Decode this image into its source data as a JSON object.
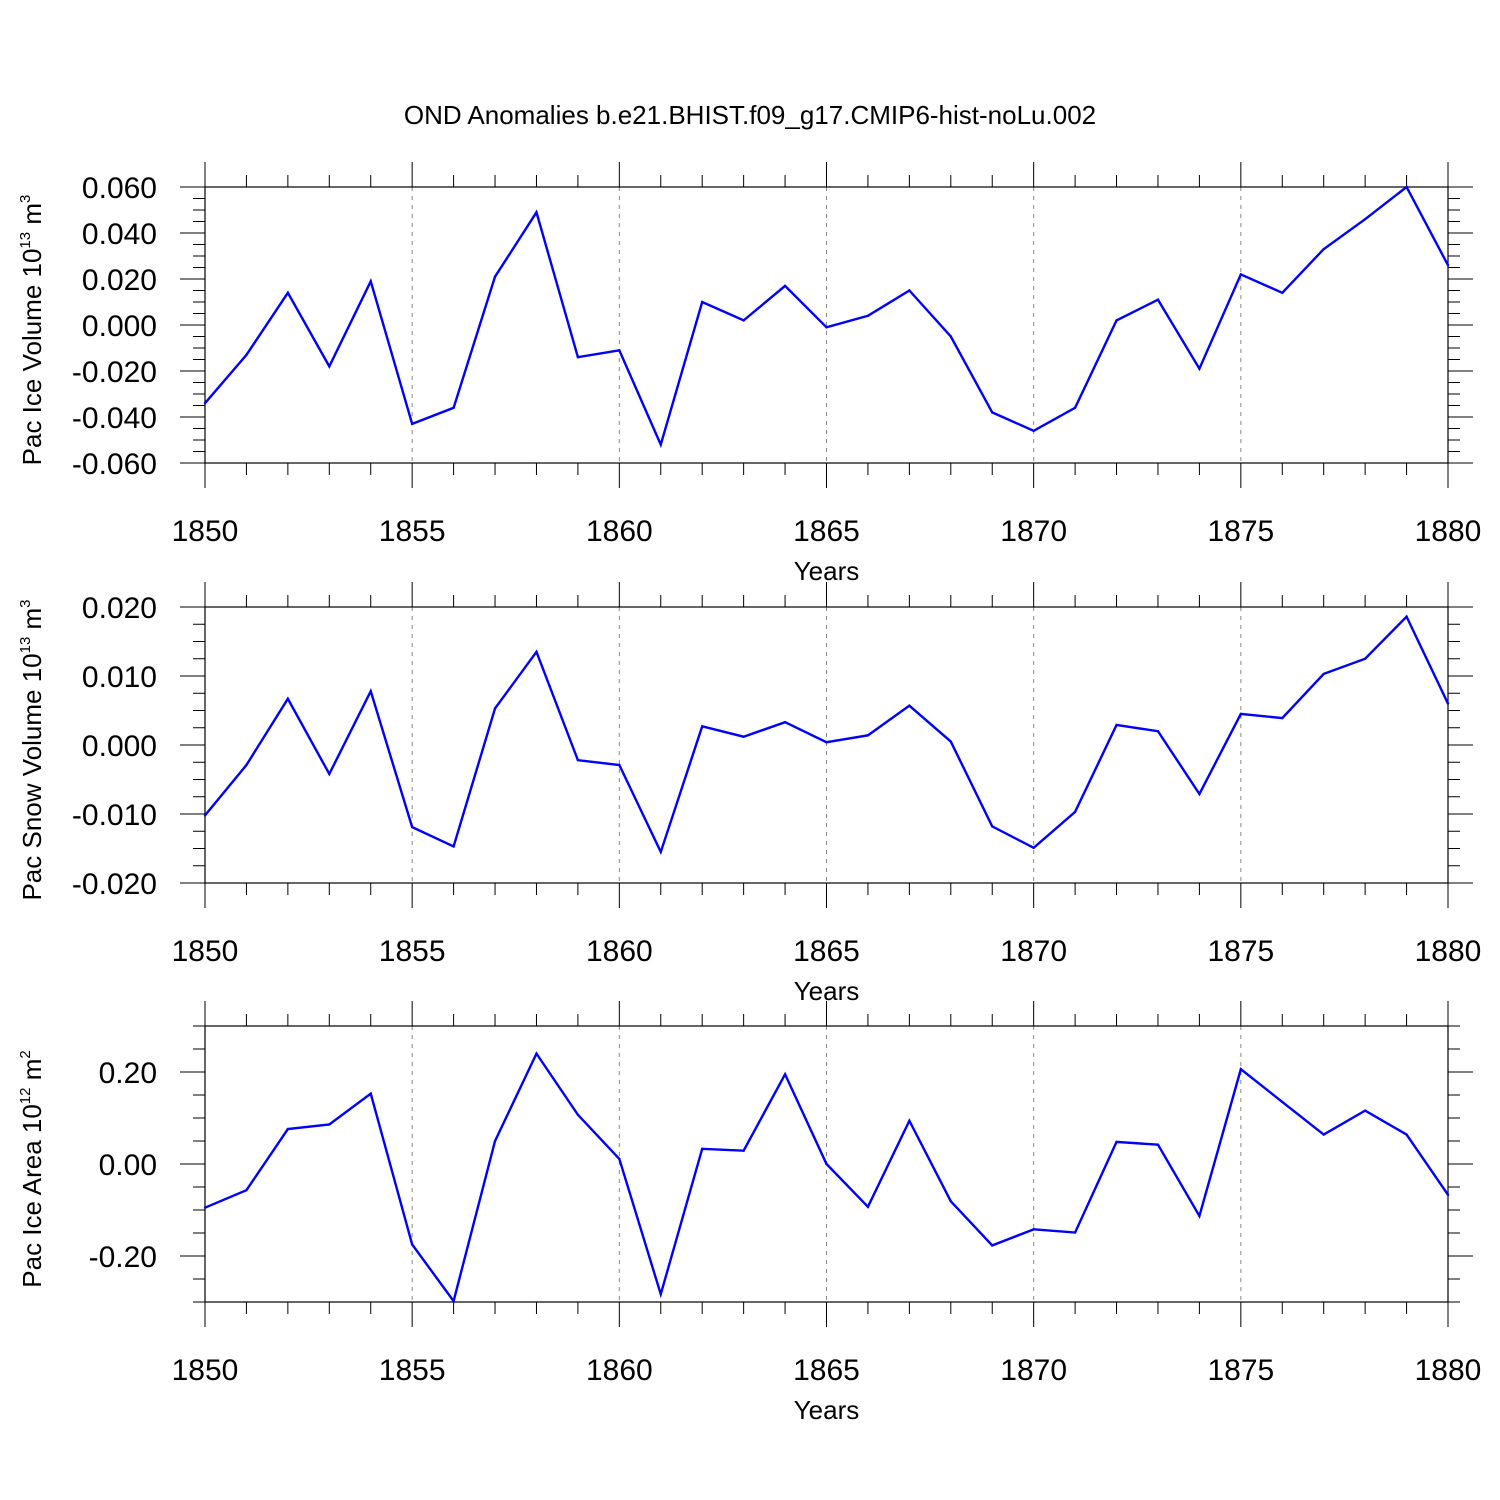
{
  "title": "OND Anomalies b.e21.BHIST.f09_g17.CMIP6-hist-noLu.002",
  "colors": {
    "line": "#0000ff",
    "axis": "#000000",
    "grid": "#888888"
  },
  "chart_data": [
    {
      "type": "line",
      "ylabel_main": "Pac Ice Volume 10",
      "ylabel_exp": "13",
      "ylabel_unit": " m",
      "ylabel_unit_exp": "3",
      "xlabel": "Years",
      "xlim": [
        1850,
        1880
      ],
      "ylim": [
        -0.06,
        0.06
      ],
      "yticks": [
        -0.06,
        -0.04,
        -0.02,
        0.0,
        0.02,
        0.04,
        0.06
      ],
      "ytick_labels": [
        "-0.060",
        "-0.040",
        "-0.020",
        "0.000",
        "0.020",
        "0.040",
        "0.060"
      ],
      "xticks": [
        1850,
        1855,
        1860,
        1865,
        1870,
        1875,
        1880
      ],
      "xtick_labels": [
        "1850",
        "1855",
        "1860",
        "1865",
        "1870",
        "1875",
        "1880"
      ],
      "grid": "vertical dashed at major x ticks",
      "x": [
        1850,
        1851,
        1852,
        1853,
        1854,
        1855,
        1856,
        1857,
        1858,
        1859,
        1860,
        1861,
        1862,
        1863,
        1864,
        1865,
        1866,
        1867,
        1868,
        1869,
        1870,
        1871,
        1872,
        1873,
        1874,
        1875,
        1876,
        1877,
        1878,
        1879,
        1880
      ],
      "values": [
        -0.034,
        -0.013,
        0.014,
        -0.018,
        0.019,
        -0.043,
        -0.036,
        0.021,
        0.049,
        -0.014,
        -0.011,
        -0.052,
        0.01,
        0.002,
        0.017,
        -0.001,
        0.004,
        0.015,
        -0.005,
        -0.038,
        -0.046,
        -0.036,
        0.002,
        0.011,
        -0.019,
        0.022,
        0.014,
        0.033,
        0.046,
        0.06,
        0.026
      ]
    },
    {
      "type": "line",
      "ylabel_main": "Pac Snow Volume 10",
      "ylabel_exp": "13",
      "ylabel_unit": " m",
      "ylabel_unit_exp": "3",
      "xlabel": "Years",
      "xlim": [
        1850,
        1880
      ],
      "ylim": [
        -0.02,
        0.02
      ],
      "yticks": [
        -0.02,
        -0.01,
        0.0,
        0.01,
        0.02
      ],
      "ytick_labels": [
        "-0.020",
        "-0.010",
        "0.000",
        "0.010",
        "0.020"
      ],
      "xticks": [
        1850,
        1855,
        1860,
        1865,
        1870,
        1875,
        1880
      ],
      "xtick_labels": [
        "1850",
        "1855",
        "1860",
        "1865",
        "1870",
        "1875",
        "1880"
      ],
      "grid": "vertical dashed at major x ticks",
      "x": [
        1850,
        1851,
        1852,
        1853,
        1854,
        1855,
        1856,
        1857,
        1858,
        1859,
        1860,
        1861,
        1862,
        1863,
        1864,
        1865,
        1866,
        1867,
        1868,
        1869,
        1870,
        1871,
        1872,
        1873,
        1874,
        1875,
        1876,
        1877,
        1878,
        1879,
        1880
      ],
      "values": [
        -0.0102,
        -0.0029,
        0.0067,
        -0.0042,
        0.0078,
        -0.0119,
        -0.0147,
        0.0053,
        0.0135,
        -0.0022,
        -0.0029,
        -0.0155,
        0.0027,
        0.0012,
        0.0033,
        0.0004,
        0.0014,
        0.0057,
        0.0005,
        -0.0118,
        -0.0149,
        -0.0097,
        0.0029,
        0.002,
        -0.0071,
        0.0045,
        0.0039,
        0.0103,
        0.0125,
        0.0186,
        0.006
      ]
    },
    {
      "type": "line",
      "ylabel_main": "Pac Ice Area 10",
      "ylabel_exp": "12",
      "ylabel_unit": " m",
      "ylabel_unit_exp": "2",
      "xlabel": "Years",
      "xlim": [
        1850,
        1880
      ],
      "ylim": [
        -0.3,
        0.3
      ],
      "yticks": [
        -0.2,
        0.0,
        0.2
      ],
      "ytick_labels": [
        "-0.20",
        "0.00",
        "0.20"
      ],
      "xticks": [
        1850,
        1855,
        1860,
        1865,
        1870,
        1875,
        1880
      ],
      "xtick_labels": [
        "1850",
        "1855",
        "1860",
        "1865",
        "1870",
        "1875",
        "1880"
      ],
      "grid": "vertical dashed at major x ticks",
      "x": [
        1850,
        1851,
        1852,
        1853,
        1854,
        1855,
        1856,
        1857,
        1858,
        1859,
        1860,
        1861,
        1862,
        1863,
        1864,
        1865,
        1866,
        1867,
        1868,
        1869,
        1870,
        1871,
        1872,
        1873,
        1874,
        1875,
        1876,
        1877,
        1878,
        1879,
        1880
      ],
      "values": [
        -0.095,
        -0.057,
        0.076,
        0.086,
        0.153,
        -0.175,
        -0.298,
        0.05,
        0.24,
        0.107,
        0.011,
        -0.283,
        0.033,
        0.029,
        0.195,
        0.0,
        -0.093,
        0.094,
        -0.081,
        -0.177,
        -0.142,
        -0.149,
        0.048,
        0.042,
        -0.113,
        0.206,
        0.135,
        0.064,
        0.116,
        0.064,
        -0.067
      ]
    }
  ]
}
